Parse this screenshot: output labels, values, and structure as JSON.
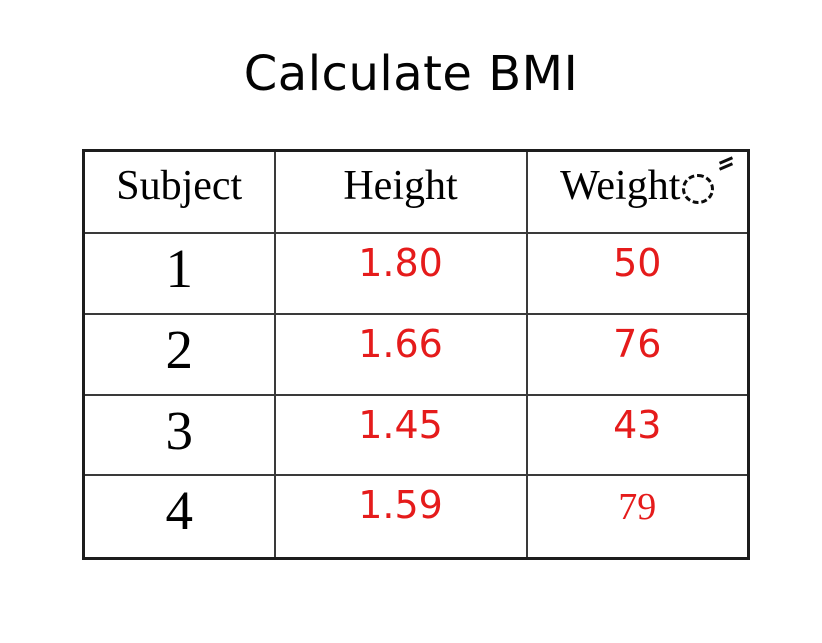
{
  "title": "Calculate BMI",
  "colors": {
    "value_red": "#e51b1b",
    "text_black": "#000000",
    "border_gray": "#3a3a3a",
    "background": "#ffffff"
  },
  "icons": {
    "weight_annotation": "dashed-circle-cursor with double-slash mark"
  },
  "table": {
    "headers": [
      "Subject",
      "Height",
      "Weight"
    ],
    "rows": [
      {
        "subject": "1",
        "height": "1.80",
        "weight": "50"
      },
      {
        "subject": "2",
        "height": "1.66",
        "weight": "76"
      },
      {
        "subject": "3",
        "height": "1.45",
        "weight": "43"
      },
      {
        "subject": "4",
        "height": "1.59",
        "weight": "79"
      }
    ]
  },
  "chart_data": {
    "type": "table",
    "title": "Calculate BMI",
    "columns": [
      "Subject",
      "Height",
      "Weight"
    ],
    "rows": [
      [
        1,
        1.8,
        50
      ],
      [
        2,
        1.66,
        76
      ],
      [
        3,
        1.45,
        43
      ],
      [
        4,
        1.59,
        79
      ]
    ],
    "notes": "Height and Weight values rendered in red; Subject numbers and headers in black serif"
  }
}
